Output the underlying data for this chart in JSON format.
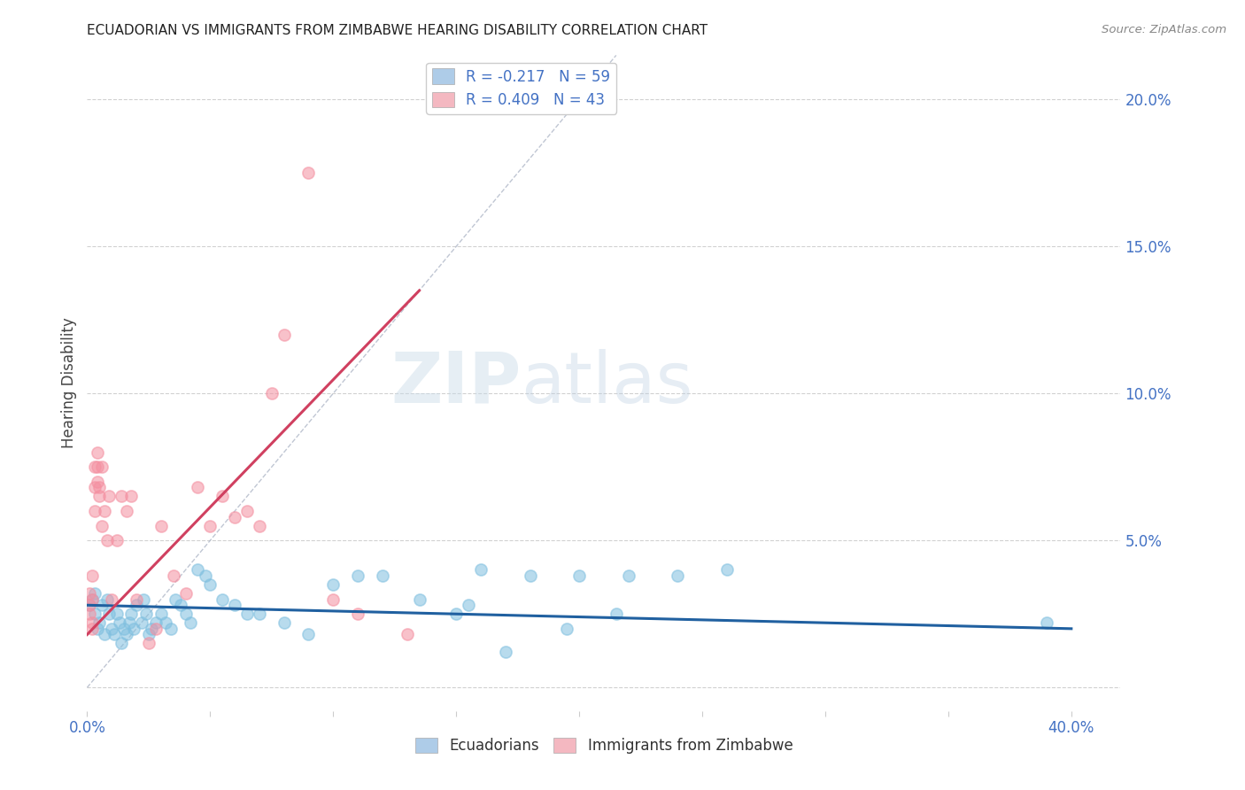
{
  "title": "ECUADORIAN VS IMMIGRANTS FROM ZIMBABWE HEARING DISABILITY CORRELATION CHART",
  "source": "Source: ZipAtlas.com",
  "ylabel": "Hearing Disability",
  "xlim": [
    0.0,
    0.42
  ],
  "ylim": [
    -0.008,
    0.215
  ],
  "blue_scatter_x": [
    0.001,
    0.002,
    0.003,
    0.003,
    0.004,
    0.005,
    0.006,
    0.007,
    0.008,
    0.009,
    0.01,
    0.011,
    0.012,
    0.013,
    0.014,
    0.015,
    0.016,
    0.017,
    0.018,
    0.019,
    0.02,
    0.022,
    0.023,
    0.024,
    0.025,
    0.026,
    0.028,
    0.03,
    0.032,
    0.034,
    0.036,
    0.038,
    0.04,
    0.042,
    0.045,
    0.048,
    0.05,
    0.055,
    0.06,
    0.065,
    0.07,
    0.08,
    0.09,
    0.1,
    0.11,
    0.12,
    0.135,
    0.15,
    0.16,
    0.18,
    0.2,
    0.22,
    0.24,
    0.26,
    0.17,
    0.195,
    0.215,
    0.155,
    0.39
  ],
  "blue_scatter_y": [
    0.028,
    0.03,
    0.025,
    0.032,
    0.02,
    0.022,
    0.028,
    0.018,
    0.03,
    0.025,
    0.02,
    0.018,
    0.025,
    0.022,
    0.015,
    0.02,
    0.018,
    0.022,
    0.025,
    0.02,
    0.028,
    0.022,
    0.03,
    0.025,
    0.018,
    0.02,
    0.022,
    0.025,
    0.022,
    0.02,
    0.03,
    0.028,
    0.025,
    0.022,
    0.04,
    0.038,
    0.035,
    0.03,
    0.028,
    0.025,
    0.025,
    0.022,
    0.018,
    0.035,
    0.038,
    0.038,
    0.03,
    0.025,
    0.04,
    0.038,
    0.038,
    0.038,
    0.038,
    0.04,
    0.012,
    0.02,
    0.025,
    0.028,
    0.022
  ],
  "pink_scatter_x": [
    0.001,
    0.001,
    0.001,
    0.002,
    0.002,
    0.002,
    0.002,
    0.003,
    0.003,
    0.003,
    0.004,
    0.004,
    0.004,
    0.005,
    0.005,
    0.006,
    0.006,
    0.007,
    0.008,
    0.009,
    0.01,
    0.012,
    0.014,
    0.016,
    0.018,
    0.02,
    0.025,
    0.028,
    0.03,
    0.035,
    0.04,
    0.045,
    0.05,
    0.055,
    0.06,
    0.065,
    0.07,
    0.075,
    0.08,
    0.09,
    0.1,
    0.11,
    0.13
  ],
  "pink_scatter_y": [
    0.032,
    0.025,
    0.028,
    0.038,
    0.03,
    0.022,
    0.02,
    0.06,
    0.068,
    0.075,
    0.07,
    0.075,
    0.08,
    0.065,
    0.068,
    0.055,
    0.075,
    0.06,
    0.05,
    0.065,
    0.03,
    0.05,
    0.065,
    0.06,
    0.065,
    0.03,
    0.015,
    0.02,
    0.055,
    0.038,
    0.032,
    0.068,
    0.055,
    0.065,
    0.058,
    0.06,
    0.055,
    0.1,
    0.12,
    0.175,
    0.03,
    0.025,
    0.018
  ],
  "blue_line_x": [
    0.0,
    0.4
  ],
  "blue_line_y": [
    0.028,
    0.02
  ],
  "pink_line_x": [
    0.0,
    0.135
  ],
  "pink_line_y": [
    0.018,
    0.135
  ],
  "diagonal_line_x": [
    0.0,
    0.215
  ],
  "diagonal_line_y": [
    0.0,
    0.215
  ],
  "blue_dot_color": "#7fbfdf",
  "pink_dot_color": "#f48fa0",
  "blue_legend_color": "#aecce8",
  "pink_legend_color": "#f4b8c1",
  "blue_line_color": "#2060a0",
  "pink_line_color": "#d04060",
  "diagonal_color": "#b0b8c8",
  "title_color": "#222222",
  "axis_label_color": "#4472c4",
  "legend_text_color": "#4472c4",
  "ylabel_color": "#444444",
  "background_color": "#ffffff",
  "grid_color": "#cccccc"
}
